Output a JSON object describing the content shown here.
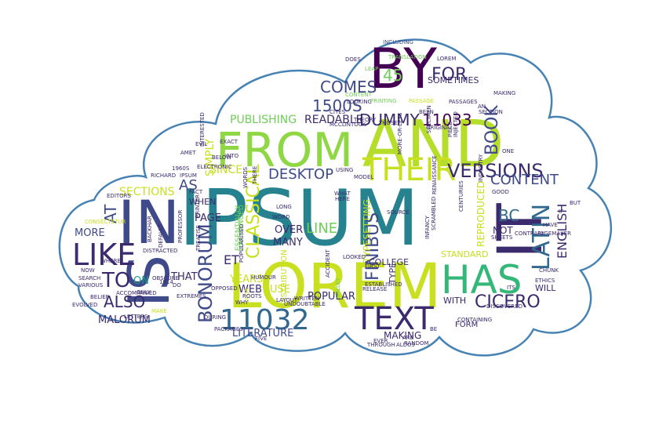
{
  "palette": {
    "dark_purple": "#440154",
    "purple": "#3b2a6e",
    "indigo": "#3e4a89",
    "blue": "#31688e",
    "teal": "#26828e",
    "green_teal": "#1f9e89",
    "green": "#35b779",
    "light_green": "#6ece58",
    "lime": "#b5de2b",
    "yellow": "#fde725",
    "outline": "#4682b4"
  },
  "words": [
    {
      "text": "IPSUM",
      "color": "#26828e"
    },
    {
      "text": "AND",
      "color": "#b5de2b"
    },
    {
      "text": "LOREM",
      "color": "#c8e020"
    },
    {
      "text": "IN",
      "color": "#3e4a89"
    },
    {
      "text": "IS",
      "color": "#3e4a89"
    },
    {
      "text": "IT",
      "color": "#3b2a6e"
    },
    {
      "text": "BY",
      "color": "#440154"
    },
    {
      "text": "FROM",
      "color": "#8fd744"
    },
    {
      "text": "LIKE",
      "color": "#3b2a6e"
    },
    {
      "text": "HAS",
      "color": "#35b779"
    },
    {
      "text": "TEXT",
      "color": "#3b2a6e"
    },
    {
      "text": "11032",
      "color": "#31688e"
    },
    {
      "text": "THEIR",
      "color": "#c8e020"
    },
    {
      "text": "LATIN",
      "color": "#31688e"
    },
    {
      "text": "VERSIONS",
      "color": "#3b2a6e"
    },
    {
      "text": "CICERO",
      "color": "#3b2a6e"
    },
    {
      "text": "TO",
      "color": "#3b2a6e"
    },
    {
      "text": "BONORUM",
      "color": "#3e4a89"
    },
    {
      "text": "CLASSICAL",
      "color": "#c8e020"
    },
    {
      "text": "FINIBUS",
      "color": "#3e4a89"
    },
    {
      "text": "ALSO",
      "color": "#3b2a6e"
    },
    {
      "text": "DUMMY",
      "color": "#3b2a6e"
    },
    {
      "text": "11033",
      "color": "#440154"
    },
    {
      "text": "1500S",
      "color": "#3e4a89"
    },
    {
      "text": "COMES",
      "color": "#3e4a89"
    },
    {
      "text": "45",
      "color": "#6ece58"
    },
    {
      "text": "FOR",
      "color": "#3b2a6e"
    },
    {
      "text": "BOOK",
      "color": "#3e4a89"
    },
    {
      "text": "DESKTOP",
      "color": "#3e4a89"
    },
    {
      "text": "CONTENT",
      "color": "#3e4a89"
    },
    {
      "text": "ENGLISH",
      "color": "#3b2a6e"
    },
    {
      "text": "BC",
      "color": "#31688e"
    },
    {
      "text": "AT",
      "color": "#3e4a89"
    },
    {
      "text": "LINE",
      "color": "#6ece58"
    },
    {
      "text": "AS",
      "color": "#3e4a89"
    },
    {
      "text": "ET",
      "color": "#3b2a6e"
    },
    {
      "text": "SIMPLY",
      "color": "#c8e020"
    },
    {
      "text": "SINCE",
      "color": "#c8e020"
    },
    {
      "text": "PUBLISHING",
      "color": "#6ece58"
    },
    {
      "text": "READABLE",
      "color": "#3b2a6e"
    },
    {
      "text": "SECTIONS",
      "color": "#c8e020"
    },
    {
      "text": "MORE",
      "color": "#3e4a89"
    },
    {
      "text": "MALORUM",
      "color": "#3b2a6e"
    },
    {
      "text": "ON",
      "color": "#1f9e89"
    },
    {
      "text": "THAT",
      "color": "#3b2a6e"
    },
    {
      "text": "PAGE",
      "color": "#3b2a6e"
    },
    {
      "text": "OVER",
      "color": "#3b2a6e"
    },
    {
      "text": "MANY",
      "color": "#3b2a6e"
    },
    {
      "text": "YEARS",
      "color": "#c8e020"
    },
    {
      "text": "WEB",
      "color": "#3b2a6e"
    },
    {
      "text": "USE",
      "color": "#c8e020"
    },
    {
      "text": "POPULAR",
      "color": "#3b2a6e"
    },
    {
      "text": "LITERATURE",
      "color": "#3e4a89"
    },
    {
      "text": "MAKING",
      "color": "#3b2a6e"
    },
    {
      "text": "TYPESETTING",
      "color": "#c8e020"
    },
    {
      "text": "REPRODUCED",
      "color": "#c8e020"
    },
    {
      "text": "NOT",
      "color": "#3b2a6e"
    },
    {
      "text": "STANDARD",
      "color": "#c8e020"
    },
    {
      "text": "WITH",
      "color": "#3b2a6e"
    },
    {
      "text": "WILL",
      "color": "#3b2a6e"
    },
    {
      "text": "SOMETIMES",
      "color": "#3b2a6e"
    },
    {
      "text": "WHEN",
      "color": "#3b2a6e"
    },
    {
      "text": "TYPE",
      "color": "#3b2a6e"
    },
    {
      "text": "COLLEGE",
      "color": "#3b2a6e"
    },
    {
      "text": "DISTRIBUTION",
      "color": "#c8e020"
    },
    {
      "text": "ESSENTIALLY",
      "color": "#6ece58"
    },
    {
      "text": "UNCHANGED",
      "color": "#6ece58"
    },
    {
      "text": "FORM",
      "color": "#3b2a6e"
    },
    {
      "text": "INCLUDING",
      "color": "#3e4a89"
    },
    {
      "text": "LOREM",
      "color": "#3b2a6e"
    },
    {
      "text": "DOES",
      "color": "#3b2a6e"
    },
    {
      "text": "LEAP",
      "color": "#6ece58"
    },
    {
      "text": "CONTENT",
      "color": "#6ece58"
    },
    {
      "text": "LOOKING",
      "color": "#3b2a6e"
    },
    {
      "text": "PASSAGES",
      "color": "#3b2a6e"
    },
    {
      "text": "PASSAGE",
      "color": "#c8e020"
    },
    {
      "text": "PRINTING",
      "color": "#6ece58"
    },
    {
      "text": "EXACT",
      "color": "#3b2a6e"
    },
    {
      "text": "BELOW",
      "color": "#3b2a6e"
    },
    {
      "text": "ELECTRONIC",
      "color": "#3b2a6e"
    },
    {
      "text": "1960S",
      "color": "#3b2a6e"
    },
    {
      "text": "IPSUM",
      "color": "#3b2a6e"
    },
    {
      "text": "INTERESTED",
      "color": "#3b2a6e"
    },
    {
      "text": "USING",
      "color": "#3b2a6e"
    },
    {
      "text": "MODEL",
      "color": "#3b2a6e"
    },
    {
      "text": "GOOD",
      "color": "#3b2a6e"
    },
    {
      "text": "CENTURIES",
      "color": "#3b2a6e"
    },
    {
      "text": "INDUSTRY",
      "color": "#3b2a6e"
    },
    {
      "text": "CONSECTETUR",
      "color": "#c8e020"
    },
    {
      "text": "EVOLVED",
      "color": "#3b2a6e"
    },
    {
      "text": "DISTRACTED",
      "color": "#3b2a6e"
    },
    {
      "text": "ONLY",
      "color": "#3b2a6e"
    },
    {
      "text": "BELIEF",
      "color": "#3b2a6e"
    },
    {
      "text": "MAKE",
      "color": "#c8e020"
    },
    {
      "text": "LETTERS",
      "color": "#3b2a6e"
    },
    {
      "text": "EXTREMES",
      "color": "#3b2a6e"
    },
    {
      "text": "DOLOR",
      "color": "#c8e020"
    },
    {
      "text": "PACKAGES",
      "color": "#3b2a6e"
    },
    {
      "text": "FIVE",
      "color": "#3b2a6e"
    },
    {
      "text": "DURING",
      "color": "#3b2a6e"
    },
    {
      "text": "WRITTEN",
      "color": "#3b2a6e"
    },
    {
      "text": "ARE",
      "color": "#3b2a6e"
    },
    {
      "text": "EVER",
      "color": "#3b2a6e"
    },
    {
      "text": "ALDUS",
      "color": "#3b2a6e"
    },
    {
      "text": "BE",
      "color": "#3b2a6e"
    },
    {
      "text": "ITS",
      "color": "#3b2a6e"
    },
    {
      "text": "DISCOVERED",
      "color": "#3b2a6e"
    },
    {
      "text": "CONTAINING",
      "color": "#3b2a6e"
    },
    {
      "text": "ETHICS",
      "color": "#3b2a6e"
    },
    {
      "text": "CHUNK",
      "color": "#3b2a6e"
    },
    {
      "text": "LOOK",
      "color": "#3b2a6e"
    },
    {
      "text": "CONTRARY",
      "color": "#3b2a6e"
    },
    {
      "text": "GOING",
      "color": "#3b2a6e"
    },
    {
      "text": "HAVE",
      "color": "#3b2a6e"
    },
    {
      "text": "ONE",
      "color": "#3b2a6e"
    },
    {
      "text": "INFANCY",
      "color": "#3b2a6e"
    },
    {
      "text": "GALLEY",
      "color": "#6ece58"
    },
    {
      "text": "ESTABLISHED",
      "color": "#3b2a6e"
    },
    {
      "text": "RELEASE",
      "color": "#3b2a6e"
    },
    {
      "text": "FIRST",
      "color": "#3b2a6e"
    },
    {
      "text": "LOOKED",
      "color": "#3b2a6e"
    },
    {
      "text": "WHAT",
      "color": "#3b2a6e"
    },
    {
      "text": "HERE",
      "color": "#3b2a6e"
    },
    {
      "text": "PIECE",
      "color": "#3b2a6e"
    },
    {
      "text": "INJECTED",
      "color": "#3b2a6e"
    },
    {
      "text": "ORIGINAL",
      "color": "#3b2a6e"
    },
    {
      "text": "FACT",
      "color": "#3b2a6e"
    },
    {
      "text": "PRINTER",
      "color": "#3b2a6e"
    },
    {
      "text": "TREATISE",
      "color": "#3b2a6e"
    },
    {
      "text": "OPPOSED",
      "color": "#3b2a6e"
    },
    {
      "text": "HUMOUR",
      "color": "#3b2a6e"
    },
    {
      "text": "LONG",
      "color": "#3b2a6e"
    },
    {
      "text": "EVIL",
      "color": "#3b2a6e"
    },
    {
      "text": "EDITORS",
      "color": "#3b2a6e"
    },
    {
      "text": "NOW",
      "color": "#3b2a6e"
    },
    {
      "text": "VARIOUS",
      "color": "#3b2a6e"
    },
    {
      "text": "SEARCH",
      "color": "#3b2a6e"
    },
    {
      "text": "BACKHAR",
      "color": "#3b2a6e"
    },
    {
      "text": "DEFAULT",
      "color": "#3b2a6e"
    },
    {
      "text": "OBSCURE",
      "color": "#3b2a6e"
    },
    {
      "text": "DO",
      "color": "#3b2a6e"
    },
    {
      "text": "AN",
      "color": "#3b2a6e"
    },
    {
      "text": "SECTION",
      "color": "#3b2a6e"
    },
    {
      "text": "SHEETS",
      "color": "#3b2a6e"
    },
    {
      "text": "PAGEMAKER",
      "color": "#3b2a6e"
    },
    {
      "text": "SOURCE",
      "color": "#3b2a6e"
    },
    {
      "text": "CITES",
      "color": "#3b2a6e"
    },
    {
      "text": "TRANSLATION",
      "color": "#6ece58"
    },
    {
      "text": "WORD",
      "color": "#3b2a6e"
    },
    {
      "text": "INTO",
      "color": "#3b2a6e"
    },
    {
      "text": "AMET",
      "color": "#3b2a6e"
    },
    {
      "text": "THERE",
      "color": "#3b2a6e"
    },
    {
      "text": "THEORY",
      "color": "#3b2a6e"
    },
    {
      "text": "BEEN",
      "color": "#3b2a6e"
    },
    {
      "text": "WHY",
      "color": "#3b2a6e"
    },
    {
      "text": "ROOTS",
      "color": "#3b2a6e"
    },
    {
      "text": "LAYOUT",
      "color": "#3b2a6e"
    },
    {
      "text": "POPULARISED",
      "color": "#3b2a6e"
    },
    {
      "text": "SCRAMBLED",
      "color": "#3b2a6e"
    },
    {
      "text": "ACCIDENT",
      "color": "#3b2a6e"
    },
    {
      "text": "RANDOM",
      "color": "#3b2a6e"
    },
    {
      "text": "THROUGH",
      "color": "#3b2a6e"
    },
    {
      "text": "SPECIMEN",
      "color": "#3b2a6e"
    },
    {
      "text": "MORE-OR-LESS",
      "color": "#3b2a6e"
    },
    {
      "text": "MCCLINTOCK",
      "color": "#3b2a6e"
    },
    {
      "text": "RICHARD",
      "color": "#3b2a6e"
    },
    {
      "text": "PROFESSOR",
      "color": "#3b2a6e"
    },
    {
      "text": "1914",
      "color": "#3b2a6e"
    },
    {
      "text": "WORDS",
      "color": "#3b2a6e"
    },
    {
      "text": "UNDOUBTABLE",
      "color": "#3b2a6e"
    },
    {
      "text": "MAKING",
      "color": "#3b2a6e"
    },
    {
      "text": "THOSE",
      "color": "#3b2a6e"
    },
    {
      "text": "WHERE",
      "color": "#3b2a6e"
    },
    {
      "text": "RENAISSANCE",
      "color": "#3b2a6e"
    },
    {
      "text": "ACCOMPANIED",
      "color": "#3b2a6e"
    },
    {
      "text": "BUT",
      "color": "#3b2a6e"
    },
    {
      "text": "IF",
      "color": "#3b2a6e"
    },
    {
      "text": "UP",
      "color": "#3b2a6e"
    }
  ]
}
